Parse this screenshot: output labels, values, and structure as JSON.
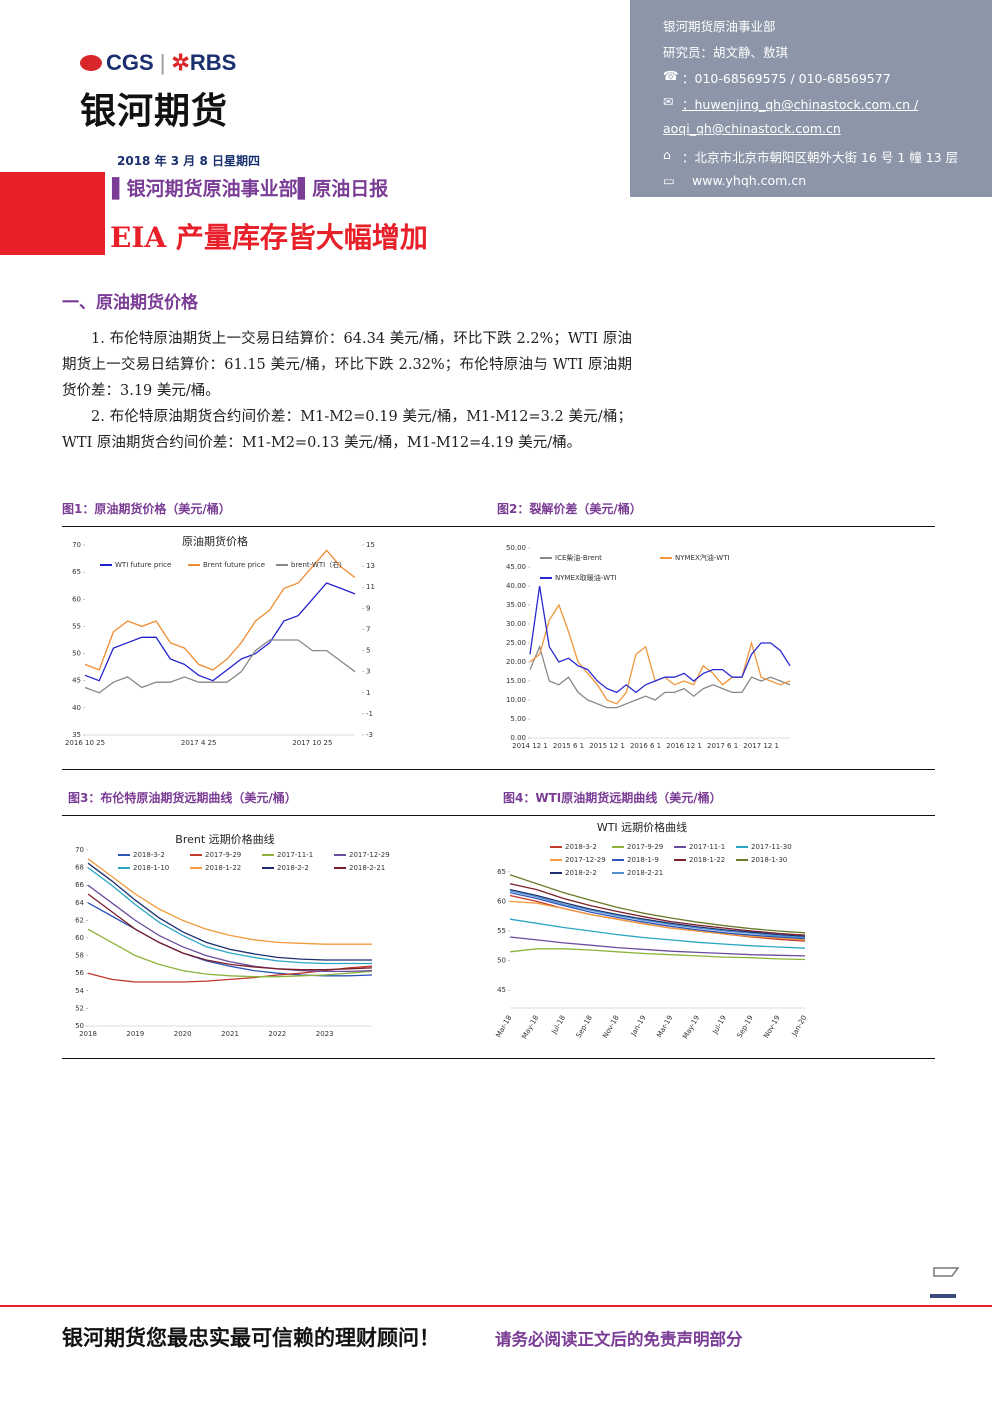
{
  "header": {
    "logo": [
      "CGS",
      "RBS"
    ],
    "brand": "银河期货",
    "date": "2018 年 3 月 8 日星期四",
    "department_line": "▌银河期货原油事业部▌原油日报",
    "headline": "EIA 产量库存皆大幅增加"
  },
  "contact": {
    "department": "银河期货原油事业部",
    "analysts": "研究员：胡文静、敖琪",
    "phone": "：010-68569575 / 010-68569577",
    "email1": "：huwenjing_qh@chinastock.com.cn /",
    "email2": "aoqi_qh@chinastock.com.cn",
    "address": "：北京市北京市朝阳区朝外大街 16 号 1 幢 13 层",
    "website": "www.yhqh.com.cn"
  },
  "section": {
    "heading": "一、原油期货价格",
    "paragraphs": [
      "1. 布伦特原油期货上一交易日结算价：64.34 美元/桶，环比下跌 2.2%；WTI 原油期货上一交易日结算价：61.15 美元/桶，环比下跌 2.32%；布伦特原油与 WTI 原油期货价差：3.19 美元/桶。",
      "2. 布伦特原油期货合约间价差：M1-M2=0.19 美元/桶，M1-M12=3.2 美元/桶；WTI 原油期货合约间价差：M1-M2=0.13 美元/桶，M1-M12=4.19 美元/桶。"
    ]
  },
  "figures": [
    {
      "caption": "图1：原油期货价格（美元/桶）",
      "chart": {
        "type": "line",
        "title": "原油期货价格",
        "categories": [
          "2016 10 25",
          null,
          null,
          null,
          null,
          null,
          null,
          null,
          "2017 4 25",
          null,
          null,
          null,
          null,
          null,
          null,
          null,
          "2017 10 25",
          null,
          null,
          null
        ],
        "ylim": [
          35,
          70
        ],
        "yticks": [
          35,
          40,
          45,
          50,
          55,
          60,
          65,
          70
        ],
        "y2lim": [
          -3,
          15
        ],
        "y2ticks": [
          -3,
          -1,
          1,
          3,
          5,
          7,
          9,
          11,
          13,
          15
        ],
        "series": [
          {
            "name": "WTI future price",
            "color": "#2222cc",
            "values": [
              46,
              45,
              51,
              52,
              53,
              53,
              49,
              48,
              46,
              45,
              47,
              49,
              50,
              52,
              56,
              57,
              60,
              63,
              62,
              61
            ]
          },
          {
            "name": "Brent future price",
            "color": "#f08c30",
            "values": [
              48,
              47,
              54,
              56,
              55,
              56,
              52,
              51,
              48,
              47,
              49,
              52,
              56,
              58,
              62,
              63,
              66,
              69,
              66,
              64
            ]
          },
          {
            "name": "brent-WTI（右）",
            "color": "#888888",
            "axis": "y2",
            "values": [
              1.5,
              1,
              2,
              2.5,
              1.5,
              2,
              2,
              2.5,
              2,
              2,
              2,
              3,
              5,
              6,
              6,
              6,
              5,
              5,
              4,
              3
            ]
          }
        ]
      }
    },
    {
      "caption": "图2：裂解价差（美元/桶）",
      "chart": {
        "type": "line",
        "categories": [
          "2014 12 1",
          null,
          null,
          null,
          "2015 6 1",
          null,
          null,
          null,
          "2015 12 1",
          null,
          null,
          null,
          "2016 6 1",
          null,
          null,
          null,
          "2016 12 1",
          null,
          null,
          null,
          "2017 6 1",
          null,
          null,
          null,
          "2017 12 1",
          null,
          null,
          null
        ],
        "ylim": [
          0,
          50
        ],
        "yticks": [
          {
            "value": 0,
            "label": "0.00"
          },
          {
            "value": 5,
            "label": "5.00"
          },
          {
            "value": 10,
            "label": "10.00"
          },
          {
            "value": 15,
            "label": "15.00"
          },
          {
            "value": 20,
            "label": "20.00"
          },
          {
            "value": 25,
            "label": "25.00"
          },
          {
            "value": 30,
            "label": "30.00"
          },
          {
            "value": 35,
            "label": "35.00"
          },
          {
            "value": 40,
            "label": "40.00"
          },
          {
            "value": 45,
            "label": "45.00"
          },
          {
            "value": 50,
            "label": "50.00"
          }
        ],
        "series": [
          {
            "name": "ICE柴油-Brent",
            "color": "#888888",
            "values": [
              18,
              24,
              15,
              14,
              16,
              12,
              10,
              9,
              8,
              8,
              9,
              10,
              11,
              10,
              12,
              12,
              13,
              11,
              13,
              14,
              13,
              12,
              12,
              16,
              15,
              16,
              15,
              14
            ]
          },
          {
            "name": "NYMEX汽油-WTI",
            "color": "#f0963c",
            "values": [
              20,
              22,
              31,
              35,
              28,
              20,
              17,
              14,
              10,
              9,
              12,
              22,
              24,
              15,
              16,
              14,
              15,
              14,
              19,
              17,
              14,
              16,
              16,
              25,
              16,
              15,
              14,
              15
            ]
          },
          {
            "name": "NYMEX取暖油-WTI",
            "color": "#2a2ad0",
            "values": [
              22,
              40,
              24,
              20,
              21,
              19,
              18,
              15,
              13,
              12,
              14,
              12,
              14,
              15,
              16,
              16,
              17,
              15,
              17,
              18,
              18,
              16,
              16,
              22,
              25,
              25,
              23,
              19
            ]
          }
        ]
      }
    },
    {
      "caption": "图3：布伦特原油期货远期曲线（美元/桶）",
      "chart": {
        "type": "line",
        "title": "Brent 远期价格曲线",
        "categories": [
          "2018",
          null,
          "2019",
          null,
          "2020",
          null,
          "2021",
          null,
          "2022",
          null,
          "2023",
          null,
          null
        ],
        "ylim": [
          50,
          70
        ],
        "yticks": [
          50,
          52,
          54,
          56,
          58,
          60,
          62,
          64,
          66,
          68,
          70
        ],
        "series": [
          {
            "name": "2018-3-2",
            "color": "#2f55b8",
            "values": [
              64,
              62.5,
              61,
              59.5,
              58.3,
              57.4,
              56.8,
              56.3,
              56,
              55.8,
              55.7,
              55.7,
              55.8
            ]
          },
          {
            "name": "2017-9-29",
            "color": "#c0392b",
            "values": [
              56,
              55.3,
              55,
              55,
              55,
              55.1,
              55.3,
              55.5,
              55.8,
              56,
              56.3,
              56.6,
              56.8
            ]
          },
          {
            "name": "2017-11-1",
            "color": "#8db33a",
            "values": [
              61,
              59.5,
              58,
              57,
              56.3,
              55.9,
              55.7,
              55.6,
              55.6,
              55.7,
              55.8,
              56,
              56.2
            ]
          },
          {
            "name": "2017-12-29",
            "color": "#6a4c9c",
            "values": [
              66,
              64,
              62,
              60.3,
              59,
              58,
              57.3,
              56.8,
              56.5,
              56.3,
              56.2,
              56.2,
              56.3
            ]
          },
          {
            "name": "2018-1-10",
            "color": "#2aa6c4",
            "values": [
              68,
              66,
              63.8,
              61.8,
              60.3,
              59,
              58.3,
              57.8,
              57.4,
              57.2,
              57.1,
              57.1,
              57.1
            ]
          },
          {
            "name": "2018-1-22",
            "color": "#f39a3c",
            "values": [
              69,
              67,
              65,
              63.3,
              62,
              61,
              60.3,
              59.8,
              59.5,
              59.4,
              59.3,
              59.3,
              59.3
            ]
          },
          {
            "name": "2018-2-2",
            "color": "#1f2f6e",
            "values": [
              68.5,
              66.5,
              64.3,
              62.3,
              60.7,
              59.5,
              58.7,
              58.2,
              57.8,
              57.6,
              57.5,
              57.5,
              57.5
            ]
          },
          {
            "name": "2018-2-21",
            "color": "#7a1f2a",
            "values": [
              65,
              63,
              61,
              59.5,
              58.3,
              57.5,
              57,
              56.7,
              56.5,
              56.4,
              56.4,
              56.5,
              56.6
            ]
          }
        ]
      }
    },
    {
      "caption": "图4：WTI原油期货远期曲线（美元/桶）",
      "chart": {
        "type": "line",
        "title": "WTI 远期价格曲线",
        "categories": [
          "Mar-18",
          "May-18",
          "Jul-18",
          "Sep-18",
          "Nov-18",
          "Jan-19",
          "Mar-19",
          "May-19",
          "Jul-19",
          "Sep-19",
          "Nov-19",
          "Jan-20"
        ],
        "ylim": [
          42,
          67
        ],
        "yticks": [
          45,
          50,
          55,
          60,
          65
        ],
        "series": [
          {
            "name": "2018-3-2",
            "color": "#c0392b",
            "values": [
              61,
              60,
              58.8,
              57.8,
              57,
              56.2,
              55.5,
              55,
              54.5,
              54,
              53.6,
              53.3
            ]
          },
          {
            "name": "2017-9-29",
            "color": "#8db33a",
            "values": [
              51.5,
              52,
              52,
              51.8,
              51.5,
              51.2,
              51,
              50.8,
              50.6,
              50.5,
              50.3,
              50.2
            ]
          },
          {
            "name": "2017-11-1",
            "color": "#6a4c9c",
            "values": [
              54,
              53.5,
              53,
              52.6,
              52.2,
              51.9,
              51.6,
              51.4,
              51.2,
              51,
              50.9,
              50.8
            ]
          },
          {
            "name": "2017-11-30",
            "color": "#2aa6c4",
            "values": [
              57,
              56.3,
              55.6,
              55,
              54.4,
              53.9,
              53.5,
              53.1,
              52.8,
              52.5,
              52.3,
              52.1
            ]
          },
          {
            "name": "2017-12-29",
            "color": "#f39a3c",
            "values": [
              60,
              59.7,
              58.8,
              57.8,
              57,
              56.2,
              55.5,
              55,
              54.5,
              54.1,
              53.8,
              53.5
            ]
          },
          {
            "name": "2018-1-9",
            "color": "#2f55b8",
            "values": [
              61.5,
              60.5,
              59.3,
              58.2,
              57.3,
              56.5,
              55.8,
              55.2,
              54.7,
              54.3,
              54,
              53.7
            ]
          },
          {
            "name": "2018-1-22",
            "color": "#7a1f2a",
            "values": [
              63,
              62,
              60.5,
              59.3,
              58.3,
              57.4,
              56.6,
              56,
              55.5,
              55,
              54.6,
              54.3
            ]
          },
          {
            "name": "2018-1-30",
            "color": "#6b7a2a",
            "values": [
              64.5,
              63,
              61.5,
              60.2,
              59,
              58,
              57.2,
              56.5,
              55.9,
              55.4,
              55,
              54.7
            ]
          },
          {
            "name": "2018-2-2",
            "color": "#1f2f6e",
            "values": [
              62,
              61,
              59.8,
              58.7,
              57.8,
              57,
              56.3,
              55.7,
              55.2,
              54.8,
              54.4,
              54.1
            ]
          },
          {
            "name": "2018-2-21",
            "color": "#4f8fd0",
            "values": [
              61.8,
              60.8,
              59.5,
              58.5,
              57.6,
              56.8,
              56.1,
              55.5,
              55,
              54.6,
              54.2,
              53.9
            ]
          }
        ]
      }
    }
  ],
  "footer": {
    "slogan": "银河期货您最忠实最可信赖的理财顾问！",
    "disclaimer": "请务必阅读正文后的免责声明部分"
  }
}
